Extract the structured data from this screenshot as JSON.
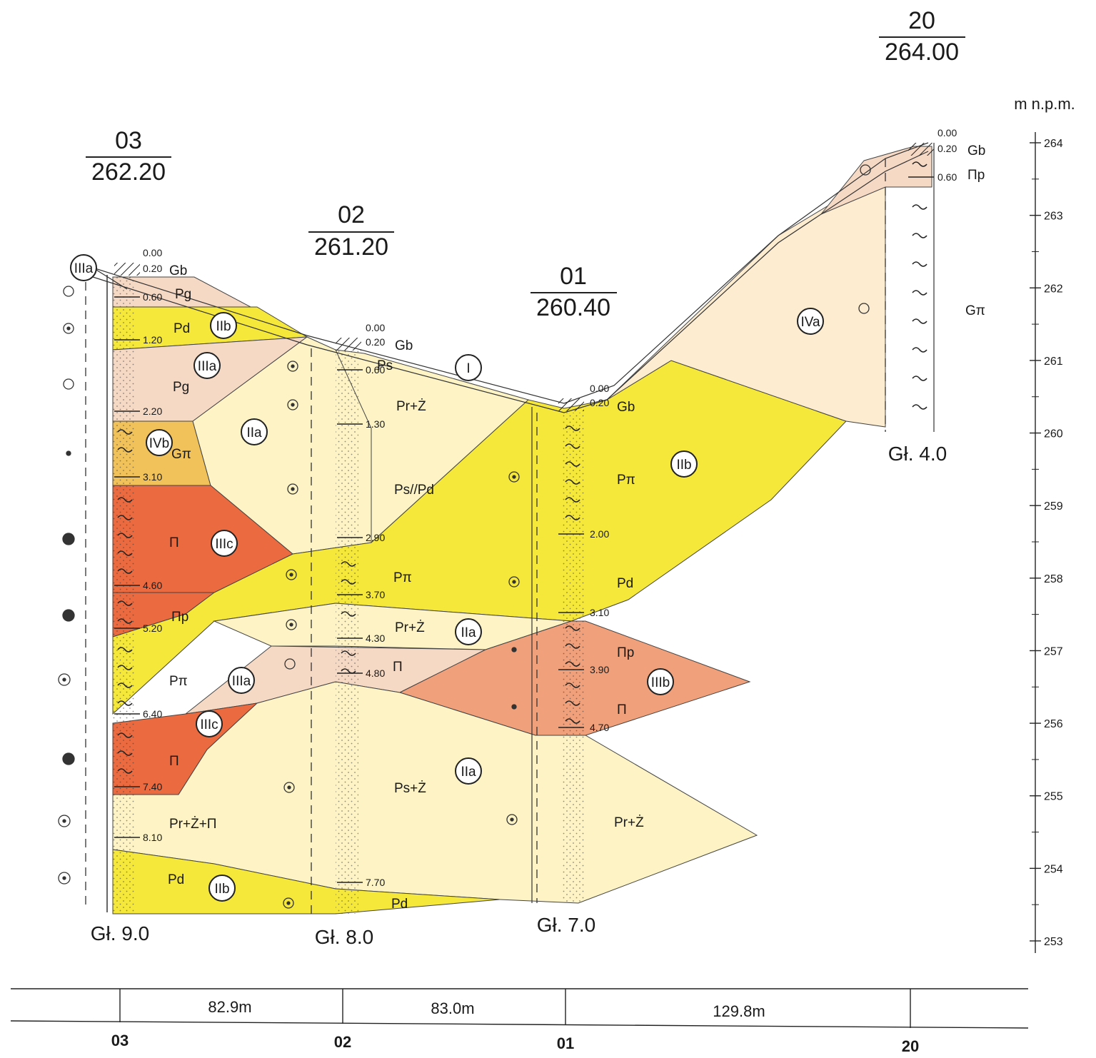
{
  "boreholes": [
    {
      "id": "03",
      "elevation": "262.20",
      "total_depth": "Gł. 9.0",
      "depths": [
        "0.00",
        "0.20",
        "0.60",
        "1.20",
        "2.20",
        "3.10",
        "4.60",
        "5.20",
        "6.40",
        "7.40",
        "8.10"
      ],
      "soils": [
        "Gb",
        "Pg",
        "Pd",
        "Pg",
        "Gπ",
        "Π",
        "Πp",
        "Pπ",
        "Π",
        "Pr+Ż+Π",
        "Pd"
      ]
    },
    {
      "id": "02",
      "elevation": "261.20",
      "total_depth": "Gł. 8.0",
      "depths": [
        "0.00",
        "0.20",
        "0.60",
        "1.30",
        "2.90",
        "3.70",
        "4.30",
        "4.80",
        "7.70"
      ],
      "soils": [
        "Gb",
        "Ps",
        "Pr+Ż",
        "Ps//Pd",
        "Pπ",
        "Pr+Ż",
        "Π",
        "Ps+Ż",
        "Pd"
      ]
    },
    {
      "id": "01",
      "elevation": "260.40",
      "total_depth": "Gł. 7.0",
      "depths": [
        "0.00",
        "0.20",
        "2.00",
        "3.10",
        "3.90",
        "4.70"
      ],
      "soils": [
        "Gb",
        "Pπ",
        "Pd",
        "Πp",
        "Π",
        "Pr+Ż"
      ]
    },
    {
      "id": "20",
      "elevation": "264.00",
      "total_depth": "Gł. 4.0",
      "depths": [
        "0.00",
        "0.20",
        "0.60"
      ],
      "soils": [
        "Gb",
        "Πp",
        "Gπ"
      ]
    }
  ],
  "zones": [
    "IIIa",
    "IIb",
    "IIIa",
    "IIa",
    "IVb",
    "IIIc",
    "IIIa",
    "IIIc",
    "IIb",
    "I",
    "IIa",
    "IIb",
    "IIIb",
    "IIa",
    "IVa"
  ],
  "axis": {
    "unit": "m n.p.m.",
    "ticks": [
      "264",
      "263",
      "262",
      "261",
      "260",
      "259",
      "258",
      "257",
      "256",
      "255",
      "254",
      "253"
    ]
  },
  "distances": {
    "segments": [
      "82.9m",
      "83.0m",
      "129.8m"
    ],
    "labels": [
      "03",
      "02",
      "01",
      "20"
    ]
  },
  "colors": {
    "bright_yellow": "#f5e83a",
    "pale_yellow": "#fdf3c4",
    "peach": "#f6d9c4",
    "orange_red": "#ec6a3f",
    "salmon": "#f0a07a",
    "ochre": "#f1c25a"
  }
}
